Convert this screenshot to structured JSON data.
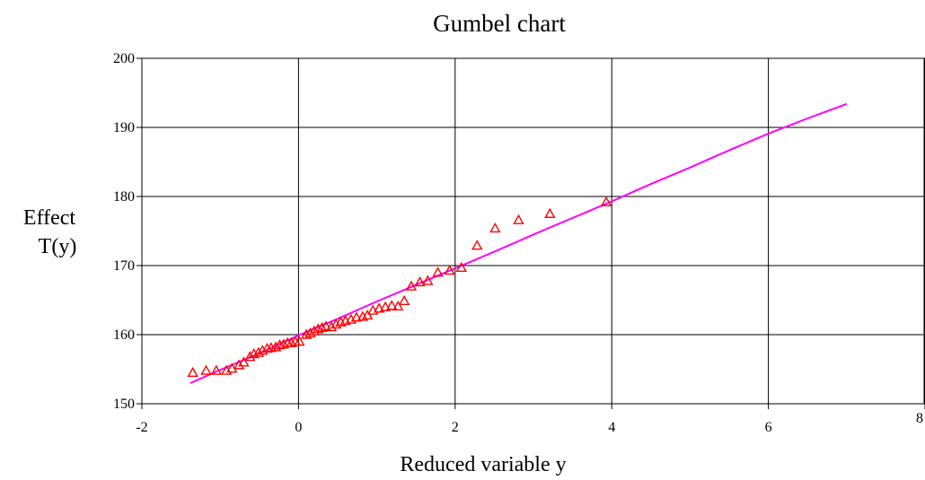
{
  "chart_data": {
    "type": "scatter",
    "title": "Gumbel chart",
    "xlabel": "Reduced variable y",
    "ylabel_lines": [
      "Effect",
      "T(y)"
    ],
    "xlim": [
      -2,
      8
    ],
    "ylim": [
      150,
      200
    ],
    "x_ticks": [
      -2,
      0,
      2,
      4,
      6,
      8
    ],
    "y_ticks": [
      150,
      160,
      170,
      180,
      190,
      200
    ],
    "grid": true,
    "legend": "none",
    "colors": {
      "observed": "#ff0000",
      "fit": "#ff00ff"
    },
    "series": [
      {
        "kind": "scatter",
        "marker": "triangle",
        "x": [
          -1.35,
          -1.18,
          -1.05,
          -0.92,
          -0.85,
          -0.76,
          -0.7,
          -0.62,
          -0.57,
          -0.51,
          -0.46,
          -0.4,
          -0.35,
          -0.29,
          -0.24,
          -0.19,
          -0.14,
          -0.09,
          -0.04,
          0.01,
          0.1,
          0.15,
          0.2,
          0.25,
          0.3,
          0.35,
          0.42,
          0.48,
          0.54,
          0.6,
          0.67,
          0.74,
          0.82,
          0.88,
          0.95,
          1.03,
          1.11,
          1.19,
          1.27,
          1.35,
          1.44,
          1.55,
          1.65,
          1.78,
          1.93,
          2.08,
          2.28,
          2.51,
          2.81,
          3.21,
          3.93
        ],
        "y": [
          154.5,
          154.8,
          154.8,
          154.8,
          155.1,
          155.6,
          156.0,
          156.8,
          157.2,
          157.4,
          157.7,
          158.0,
          158.1,
          158.2,
          158.5,
          158.6,
          158.8,
          158.8,
          159.0,
          159.0,
          160.0,
          160.2,
          160.5,
          160.8,
          161.0,
          161.2,
          161.1,
          161.5,
          161.8,
          162.0,
          162.2,
          162.5,
          162.6,
          162.8,
          163.5,
          163.8,
          164.0,
          164.2,
          164.1,
          164.9,
          167.0,
          167.6,
          167.8,
          169.0,
          169.3,
          169.7,
          172.9,
          175.4,
          176.6,
          177.5,
          179.2
        ]
      },
      {
        "kind": "line",
        "x": [
          -1.38,
          -1.0,
          -0.5,
          0.0,
          0.5,
          1.0,
          1.5,
          2.0,
          2.5,
          3.0,
          3.5,
          4.0,
          4.5,
          5.0,
          5.5,
          6.0,
          6.5,
          7.0
        ],
        "y": [
          153.0,
          154.9,
          157.3,
          159.9,
          162.3,
          164.8,
          167.2,
          169.6,
          172.0,
          174.5,
          176.9,
          179.3,
          181.8,
          184.2,
          186.7,
          189.1,
          191.3,
          193.4
        ]
      }
    ]
  }
}
